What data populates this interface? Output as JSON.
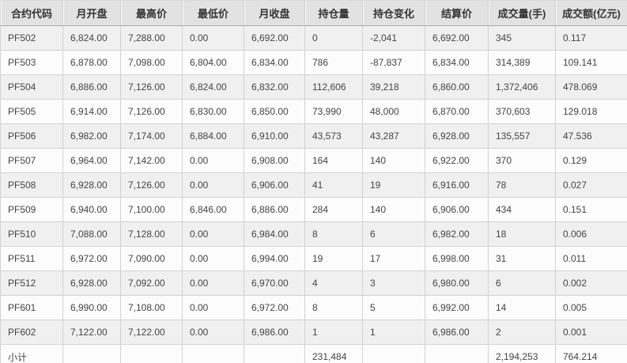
{
  "table": {
    "columns": [
      "合约代码",
      "月开盘",
      "最高价",
      "最低价",
      "月收盘",
      "持仓量",
      "持仓变化",
      "结算价",
      "成交量(手)",
      "成交额(亿元)"
    ],
    "rows": [
      [
        "PF502",
        "6,824.00",
        "7,288.00",
        "0.00",
        "6,692.00",
        "0",
        "-2,041",
        "6,692.00",
        "345",
        "0.117"
      ],
      [
        "PF503",
        "6,878.00",
        "7,098.00",
        "6,804.00",
        "6,834.00",
        "786",
        "-87,837",
        "6,834.00",
        "314,389",
        "109.141"
      ],
      [
        "PF504",
        "6,886.00",
        "7,126.00",
        "6,824.00",
        "6,832.00",
        "112,606",
        "39,218",
        "6,860.00",
        "1,372,406",
        "478.069"
      ],
      [
        "PF505",
        "6,914.00",
        "7,126.00",
        "6,830.00",
        "6,850.00",
        "73,990",
        "48,000",
        "6,870.00",
        "370,603",
        "129.018"
      ],
      [
        "PF506",
        "6,982.00",
        "7,174.00",
        "6,884.00",
        "6,910.00",
        "43,573",
        "43,287",
        "6,928.00",
        "135,557",
        "47.536"
      ],
      [
        "PF507",
        "6,964.00",
        "7,142.00",
        "0.00",
        "6,908.00",
        "164",
        "140",
        "6,922.00",
        "370",
        "0.129"
      ],
      [
        "PF508",
        "6,928.00",
        "7,126.00",
        "0.00",
        "6,906.00",
        "41",
        "19",
        "6,916.00",
        "78",
        "0.027"
      ],
      [
        "PF509",
        "6,940.00",
        "7,100.00",
        "6,846.00",
        "6,886.00",
        "284",
        "140",
        "6,906.00",
        "434",
        "0.151"
      ],
      [
        "PF510",
        "7,088.00",
        "7,128.00",
        "0.00",
        "6,984.00",
        "8",
        "6",
        "6,982.00",
        "18",
        "0.006"
      ],
      [
        "PF511",
        "6,972.00",
        "7,090.00",
        "0.00",
        "6,994.00",
        "19",
        "17",
        "6,998.00",
        "31",
        "0.011"
      ],
      [
        "PF512",
        "6,928.00",
        "7,092.00",
        "0.00",
        "6,970.00",
        "4",
        "3",
        "6,980.00",
        "6",
        "0.002"
      ],
      [
        "PF601",
        "6,990.00",
        "7,108.00",
        "0.00",
        "6,972.00",
        "8",
        "5",
        "6,992.00",
        "14",
        "0.005"
      ],
      [
        "PF602",
        "7,122.00",
        "7,122.00",
        "0.00",
        "6,986.00",
        "1",
        "1",
        "6,986.00",
        "2",
        "0.001"
      ],
      [
        "小计",
        "",
        "",
        "",
        "",
        "231,484",
        "",
        "",
        "2,194,253",
        "764.214"
      ]
    ],
    "subtotal_label": "小计",
    "colors": {
      "header_bg": "#e2e2e2",
      "row_gray_bg": "#f0f0f0",
      "row_white_bg": "#fcfcfc",
      "border": "#d2d2d2",
      "header_border_bottom": "#a9a9a9",
      "text": "#444444",
      "header_text": "#333333"
    }
  }
}
